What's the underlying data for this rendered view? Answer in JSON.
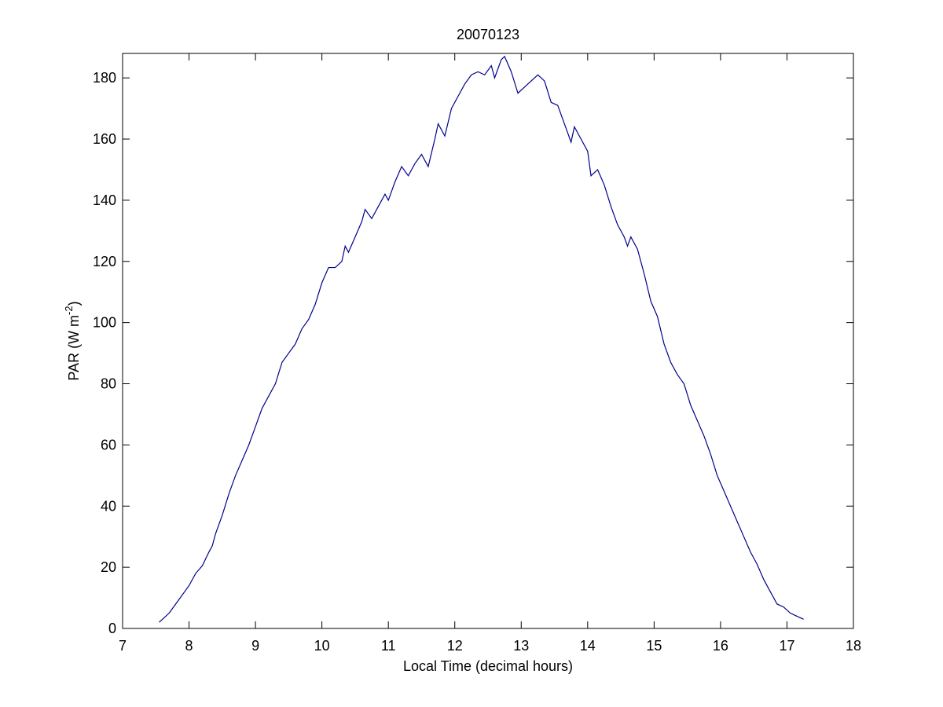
{
  "chart_data": {
    "type": "line",
    "title": "20070123",
    "x_label": "Local Time (decimal hours)",
    "y_label": {
      "text": "PAR (W m",
      "superscript": "-2",
      "suffix": ")"
    },
    "x": [
      7.55,
      7.7,
      7.8,
      7.9,
      8.0,
      8.1,
      8.2,
      8.3,
      8.35,
      8.4,
      8.5,
      8.6,
      8.7,
      8.8,
      8.9,
      9.0,
      9.1,
      9.2,
      9.3,
      9.4,
      9.5,
      9.6,
      9.7,
      9.8,
      9.9,
      10.0,
      10.1,
      10.2,
      10.3,
      10.35,
      10.4,
      10.5,
      10.6,
      10.65,
      10.75,
      10.85,
      10.95,
      11.0,
      11.1,
      11.2,
      11.3,
      11.4,
      11.5,
      11.6,
      11.7,
      11.75,
      11.85,
      11.95,
      12.05,
      12.15,
      12.25,
      12.35,
      12.45,
      12.55,
      12.6,
      12.7,
      12.75,
      12.85,
      12.95,
      13.05,
      13.15,
      13.25,
      13.35,
      13.45,
      13.55,
      13.65,
      13.75,
      13.8,
      13.9,
      14.0,
      14.05,
      14.15,
      14.25,
      14.35,
      14.45,
      14.55,
      14.6,
      14.65,
      14.75,
      14.85,
      14.95,
      15.05,
      15.15,
      15.25,
      15.35,
      15.45,
      15.55,
      15.65,
      15.75,
      15.85,
      15.95,
      16.05,
      16.15,
      16.25,
      16.35,
      16.45,
      16.55,
      16.65,
      16.75,
      16.85,
      16.95,
      17.05,
      17.15,
      17.25
    ],
    "series": [
      {
        "name": "PAR",
        "color": "#00008b",
        "values": [
          2,
          5,
          8,
          11,
          14,
          18,
          20.5,
          25,
          27,
          31,
          37,
          44,
          50,
          55,
          60,
          66,
          72,
          76,
          80,
          87,
          90,
          93,
          98,
          101,
          106,
          113,
          118,
          118,
          120,
          125,
          123,
          128,
          133,
          137,
          134,
          138,
          142,
          140,
          146,
          151,
          148,
          152,
          155,
          151,
          160,
          165,
          161,
          170,
          174,
          178,
          181,
          182,
          181,
          184,
          180,
          186,
          187,
          182,
          175,
          177,
          179,
          181,
          179,
          172,
          171,
          165,
          159,
          164,
          160,
          156,
          148,
          150,
          145,
          138,
          132,
          128,
          125,
          128,
          124,
          116,
          107,
          102,
          93,
          87,
          83,
          80,
          73,
          68,
          63,
          57,
          50,
          45,
          40,
          35,
          30,
          25,
          21,
          16,
          12,
          8,
          7,
          5,
          4,
          3
        ]
      }
    ],
    "xlim": [
      7,
      18
    ],
    "xticks": [
      7,
      8,
      9,
      10,
      11,
      12,
      13,
      14,
      15,
      16,
      17,
      18
    ],
    "ylim": [
      0,
      188
    ],
    "yticks": [
      0,
      20,
      40,
      60,
      80,
      100,
      120,
      140,
      160,
      180
    ],
    "grid": false
  }
}
